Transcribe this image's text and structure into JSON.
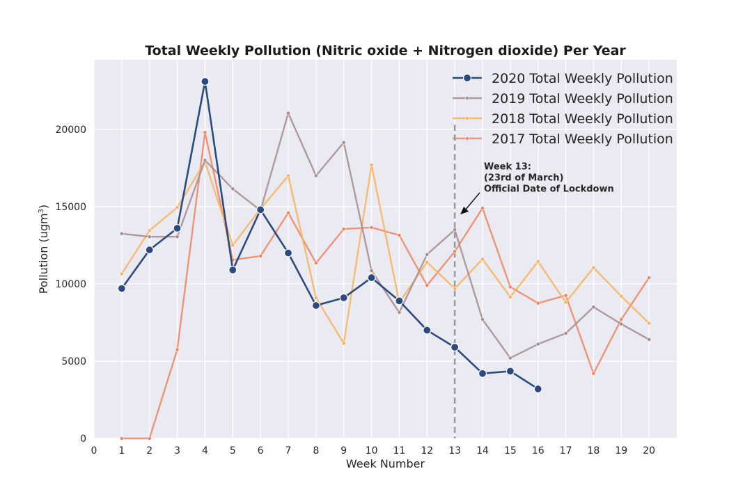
{
  "chart_data": {
    "type": "line",
    "title": "Total Weekly Pollution (Nitric oxide + Nitrogen dioxide) Per Year",
    "xlabel": "Week Number",
    "ylabel_main": "Pollution (ugm",
    "ylabel_sup": "3",
    "ylabel_close": ")",
    "xlim": [
      0,
      21
    ],
    "ylim": [
      0,
      24500
    ],
    "xticks": [
      0,
      1,
      2,
      3,
      4,
      5,
      6,
      7,
      8,
      9,
      10,
      11,
      12,
      13,
      14,
      15,
      16,
      17,
      18,
      19,
      20
    ],
    "yticks": [
      0,
      5000,
      10000,
      15000,
      20000
    ],
    "grid": true,
    "background": "#eaeaf2",
    "legend_position": "top-right",
    "series": [
      {
        "name": "2020 Total Weekly Pollution",
        "color": "#2b4a7e",
        "x": [
          1,
          2,
          3,
          4,
          5,
          6,
          7,
          8,
          9,
          10,
          11,
          12,
          13,
          14,
          15,
          16
        ],
        "values": [
          9700,
          12200,
          13600,
          23100,
          10900,
          14800,
          12000,
          8600,
          9100,
          10400,
          8900,
          7000,
          5900,
          4200,
          4350,
          3200
        ]
      },
      {
        "name": "2019 Total Weekly Pollution",
        "color": "#a58b8e",
        "x": [
          1,
          2,
          3,
          4,
          5,
          6,
          7,
          8,
          9,
          10,
          11,
          12,
          13,
          14,
          15,
          16,
          17,
          18,
          19,
          20
        ],
        "values": [
          13250,
          13050,
          13050,
          18000,
          16150,
          14750,
          21050,
          17000,
          19150,
          10850,
          8150,
          11900,
          13500,
          7700,
          5200,
          6100,
          6800,
          8500,
          7400,
          6400
        ]
      },
      {
        "name": "2018 Total Weekly Pollution",
        "color": "#f9b15b",
        "x": [
          1,
          2,
          3,
          4,
          5,
          6,
          7,
          8,
          9,
          10,
          11,
          12,
          13,
          14,
          15,
          16,
          17,
          18,
          19,
          20
        ],
        "values": [
          10650,
          13450,
          14950,
          17900,
          12500,
          14850,
          17000,
          9100,
          6150,
          17700,
          8800,
          11400,
          9700,
          11600,
          9150,
          11450,
          8800,
          11050,
          9200,
          7450
        ]
      },
      {
        "name": "2017 Total Weekly Pollution",
        "color": "#ef8462",
        "x": [
          1,
          2,
          3,
          4,
          5,
          6,
          7,
          8,
          9,
          10,
          11,
          12,
          13,
          14,
          15,
          16,
          17,
          18,
          19,
          20
        ],
        "values": [
          0,
          0,
          5750,
          19800,
          11550,
          11800,
          14600,
          11350,
          13550,
          13650,
          13150,
          9900,
          12100,
          14900,
          9800,
          8750,
          9250,
          4200,
          7700,
          10400
        ]
      }
    ],
    "vline": {
      "x": 13,
      "color": "#999999"
    },
    "annotation": {
      "lines": [
        "Week 13:",
        "(23rd of March)",
        "Official Date of Lockdown"
      ],
      "target_x": 13.2,
      "target_y": 14500,
      "text_x": 14.05,
      "text_y": 16500
    }
  }
}
